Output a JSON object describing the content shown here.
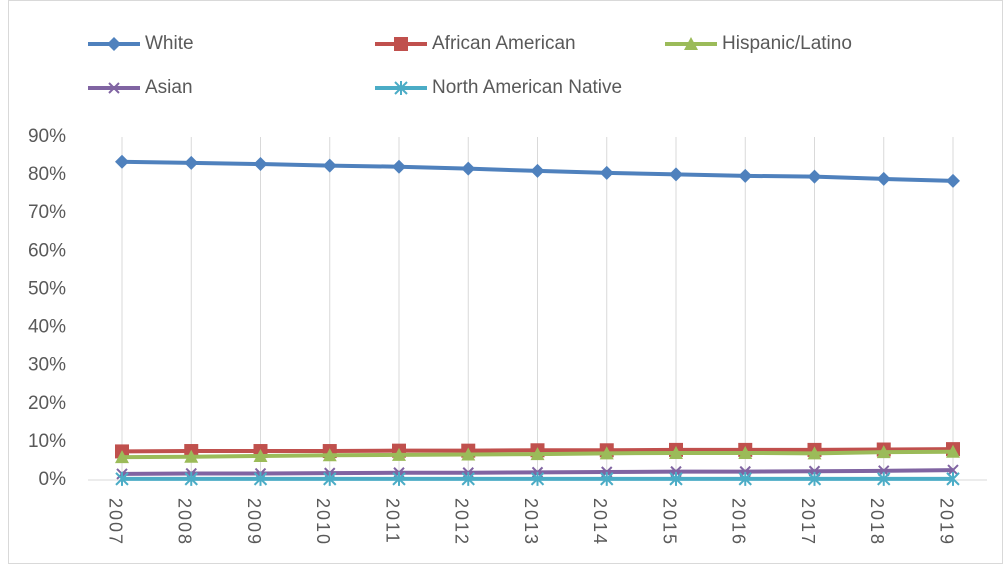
{
  "chart_data": {
    "type": "line",
    "categories": [
      "2007",
      "2008",
      "2009",
      "2010",
      "2011",
      "2012",
      "2013",
      "2014",
      "2015",
      "2016",
      "2017",
      "2018",
      "2019"
    ],
    "series": [
      {
        "name": "White",
        "color": "#4f81bd",
        "marker": "diamond",
        "values": [
          83.5,
          83.2,
          82.9,
          82.5,
          82.2,
          81.7,
          81.1,
          80.6,
          80.2,
          79.8,
          79.6,
          79.0,
          78.5
        ]
      },
      {
        "name": "African American",
        "color": "#c0504d",
        "marker": "square",
        "values": [
          7.5,
          7.6,
          7.6,
          7.6,
          7.7,
          7.7,
          7.8,
          7.8,
          7.9,
          7.9,
          7.9,
          8.0,
          8.1
        ]
      },
      {
        "name": "Hispanic/Latino",
        "color": "#9bbb59",
        "marker": "triangle",
        "values": [
          6.0,
          6.1,
          6.3,
          6.5,
          6.6,
          6.7,
          6.8,
          7.0,
          7.1,
          7.1,
          7.0,
          7.3,
          7.4
        ]
      },
      {
        "name": "Asian",
        "color": "#8064a2",
        "marker": "x",
        "values": [
          1.6,
          1.7,
          1.7,
          1.8,
          1.9,
          1.9,
          2.0,
          2.1,
          2.2,
          2.2,
          2.3,
          2.4,
          2.6
        ]
      },
      {
        "name": "North American Native",
        "color": "#4bacc6",
        "marker": "star",
        "values": [
          0.3,
          0.3,
          0.3,
          0.3,
          0.3,
          0.3,
          0.3,
          0.3,
          0.3,
          0.3,
          0.3,
          0.3,
          0.3
        ]
      }
    ],
    "ylim": [
      0,
      90
    ],
    "yticks": [
      {
        "value": 0,
        "label": "0%"
      },
      {
        "value": 10,
        "label": "10%"
      },
      {
        "value": 20,
        "label": "20%"
      },
      {
        "value": 30,
        "label": "30%"
      },
      {
        "value": 40,
        "label": "40%"
      },
      {
        "value": 50,
        "label": "50%"
      },
      {
        "value": 60,
        "label": "60%"
      },
      {
        "value": 70,
        "label": "70%"
      },
      {
        "value": 80,
        "label": "80%"
      },
      {
        "value": 90,
        "label": "90%"
      }
    ],
    "grid": "vertical",
    "legend": "top"
  }
}
